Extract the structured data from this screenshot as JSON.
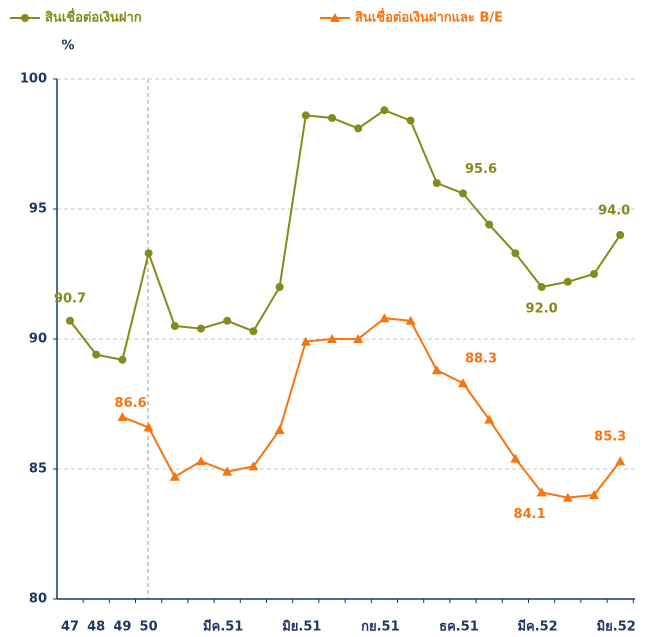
{
  "chart_data": {
    "type": "line",
    "y_label": "%",
    "categories": [
      "47",
      "48",
      "49",
      "50",
      null,
      null,
      "มีค.51",
      null,
      null,
      "มิย.51",
      null,
      null,
      "กย.51",
      null,
      null,
      "ธค.51",
      null,
      null,
      "มีค.52",
      null,
      null,
      "มิย.52"
    ],
    "series": [
      {
        "name": "สินเชื่อต่อเงินฝาก",
        "color": "#858a1a",
        "marker": "circle",
        "values": [
          90.7,
          89.4,
          89.2,
          93.3,
          90.5,
          90.4,
          90.7,
          90.3,
          92.0,
          98.6,
          98.5,
          98.1,
          98.8,
          98.4,
          96.0,
          95.6,
          94.4,
          93.3,
          92.0,
          92.2,
          92.5,
          94.0
        ],
        "value_labels": [
          "90.7",
          null,
          null,
          null,
          null,
          null,
          null,
          null,
          null,
          null,
          null,
          null,
          null,
          null,
          null,
          "95.6",
          null,
          null,
          "92.0",
          null,
          null,
          "94.0"
        ]
      },
      {
        "name": "สินเชื่อต่อเงินฝากและ B/E",
        "color": "#f7740f",
        "marker": "triangle",
        "values": [
          null,
          null,
          87.0,
          86.6,
          84.7,
          85.3,
          84.9,
          85.1,
          86.5,
          89.9,
          90.0,
          90.0,
          90.8,
          90.7,
          88.8,
          88.3,
          86.9,
          85.4,
          84.1,
          83.9,
          84.0,
          85.3
        ],
        "value_labels": [
          null,
          null,
          null,
          "86.6",
          null,
          null,
          null,
          null,
          null,
          null,
          null,
          null,
          null,
          null,
          null,
          "88.3",
          null,
          null,
          "84.1",
          null,
          null,
          "85.3"
        ]
      }
    ],
    "ylim": [
      80,
      100
    ],
    "yticks": [
      80,
      85,
      90,
      95,
      100
    ],
    "grid": true,
    "legend": "top"
  }
}
